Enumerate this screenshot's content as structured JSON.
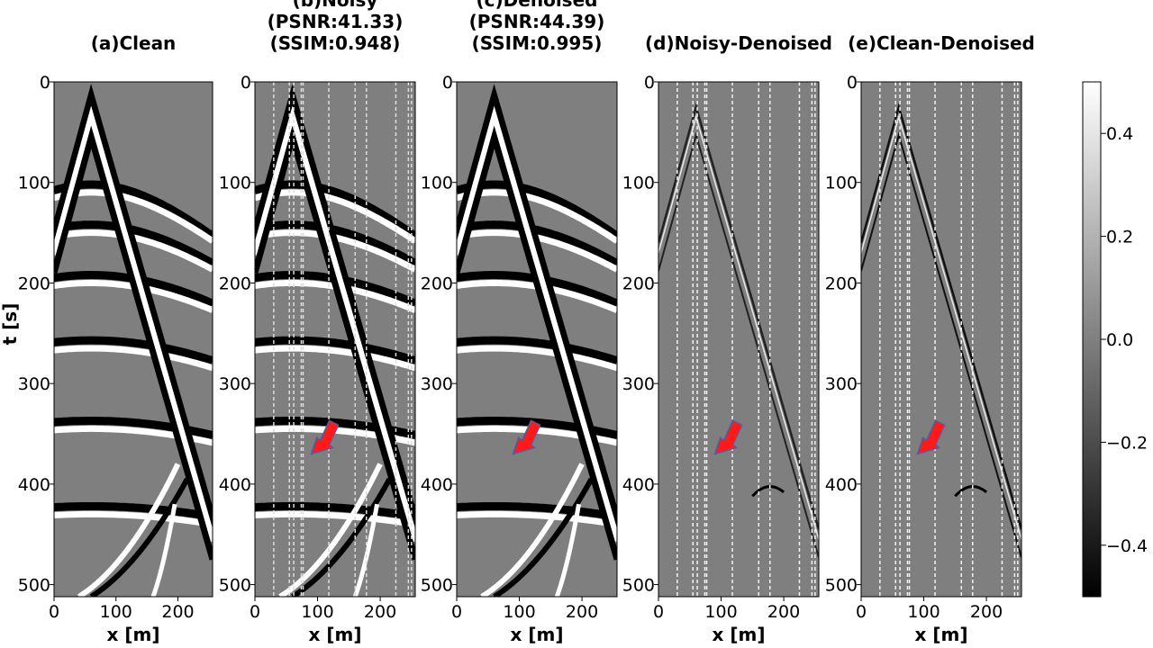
{
  "figure_ylabel": "t [s]",
  "chart_data": [
    {
      "type": "heatmap",
      "panel": "a",
      "title_lines": [
        "(a)Clean"
      ],
      "xlabel": "x [m]",
      "ylabel": "t [s]",
      "xlim": [
        0,
        256
      ],
      "ylim": [
        512,
        0
      ],
      "xticks": [
        0,
        100,
        200
      ],
      "yticks": [
        0,
        100,
        200,
        300,
        400,
        500
      ],
      "content": "clean",
      "traces": [],
      "arrow": null
    },
    {
      "type": "heatmap",
      "panel": "b",
      "title_lines": [
        "(b)Noisy",
        "(PSNR:41.33)",
        "(SSIM:0.948)"
      ],
      "metrics": {
        "psnr": 41.33,
        "ssim": 0.948
      },
      "xlabel": "x [m]",
      "xlim": [
        0,
        256
      ],
      "ylim": [
        512,
        0
      ],
      "xticks": [
        0,
        100,
        200
      ],
      "yticks": [
        0,
        100,
        200,
        300,
        400,
        500
      ],
      "content": "noisy",
      "traces": [
        30,
        55,
        62,
        74,
        77,
        118,
        160,
        178,
        225,
        245,
        250
      ],
      "arrow": {
        "x": 90,
        "t": 370
      }
    },
    {
      "type": "heatmap",
      "panel": "c",
      "title_lines": [
        "(c)Denoised",
        "(PSNR:44.39)",
        "(SSIM:0.995)"
      ],
      "metrics": {
        "psnr": 44.39,
        "ssim": 0.995
      },
      "xlabel": "x [m]",
      "xlim": [
        0,
        256
      ],
      "ylim": [
        512,
        0
      ],
      "xticks": [
        0,
        100,
        200
      ],
      "yticks": [
        0,
        100,
        200,
        300,
        400,
        500
      ],
      "content": "denoised",
      "traces": [],
      "arrow": {
        "x": 90,
        "t": 370
      }
    },
    {
      "type": "heatmap",
      "panel": "d",
      "title_lines": [
        "(d)Noisy-Denoised"
      ],
      "xlabel": "x [m]",
      "xlim": [
        0,
        256
      ],
      "ylim": [
        512,
        0
      ],
      "xticks": [
        0,
        100,
        200
      ],
      "yticks": [
        0,
        100,
        200,
        300,
        400,
        500
      ],
      "content": "difference",
      "traces": [
        30,
        55,
        62,
        74,
        77,
        118,
        160,
        178,
        225,
        245,
        250
      ],
      "arrow": {
        "x": 90,
        "t": 370
      }
    },
    {
      "type": "heatmap",
      "panel": "e",
      "title_lines": [
        "(e)Clean-Denoised"
      ],
      "xlabel": "x [m]",
      "xlim": [
        0,
        256
      ],
      "ylim": [
        512,
        0
      ],
      "xticks": [
        0,
        100,
        200
      ],
      "yticks": [
        0,
        100,
        200,
        300,
        400,
        500
      ],
      "content": "residual",
      "traces": [
        30,
        55,
        62,
        74,
        77,
        118,
        160,
        178,
        225,
        245,
        250
      ],
      "arrow": {
        "x": 90,
        "t": 370
      }
    }
  ],
  "colorbar": {
    "range": [
      -0.5,
      0.5
    ],
    "ticks": [
      "0.4",
      "0.2",
      "0.0",
      "−0.2",
      "−0.4"
    ],
    "tick_values": [
      0.4,
      0.2,
      0.0,
      -0.2,
      -0.4
    ],
    "colormap": "gray"
  },
  "colors": {
    "arrow": "#ff1a1a",
    "arrow_outline": "#5a5aa0",
    "background": "#7f7f7f"
  }
}
